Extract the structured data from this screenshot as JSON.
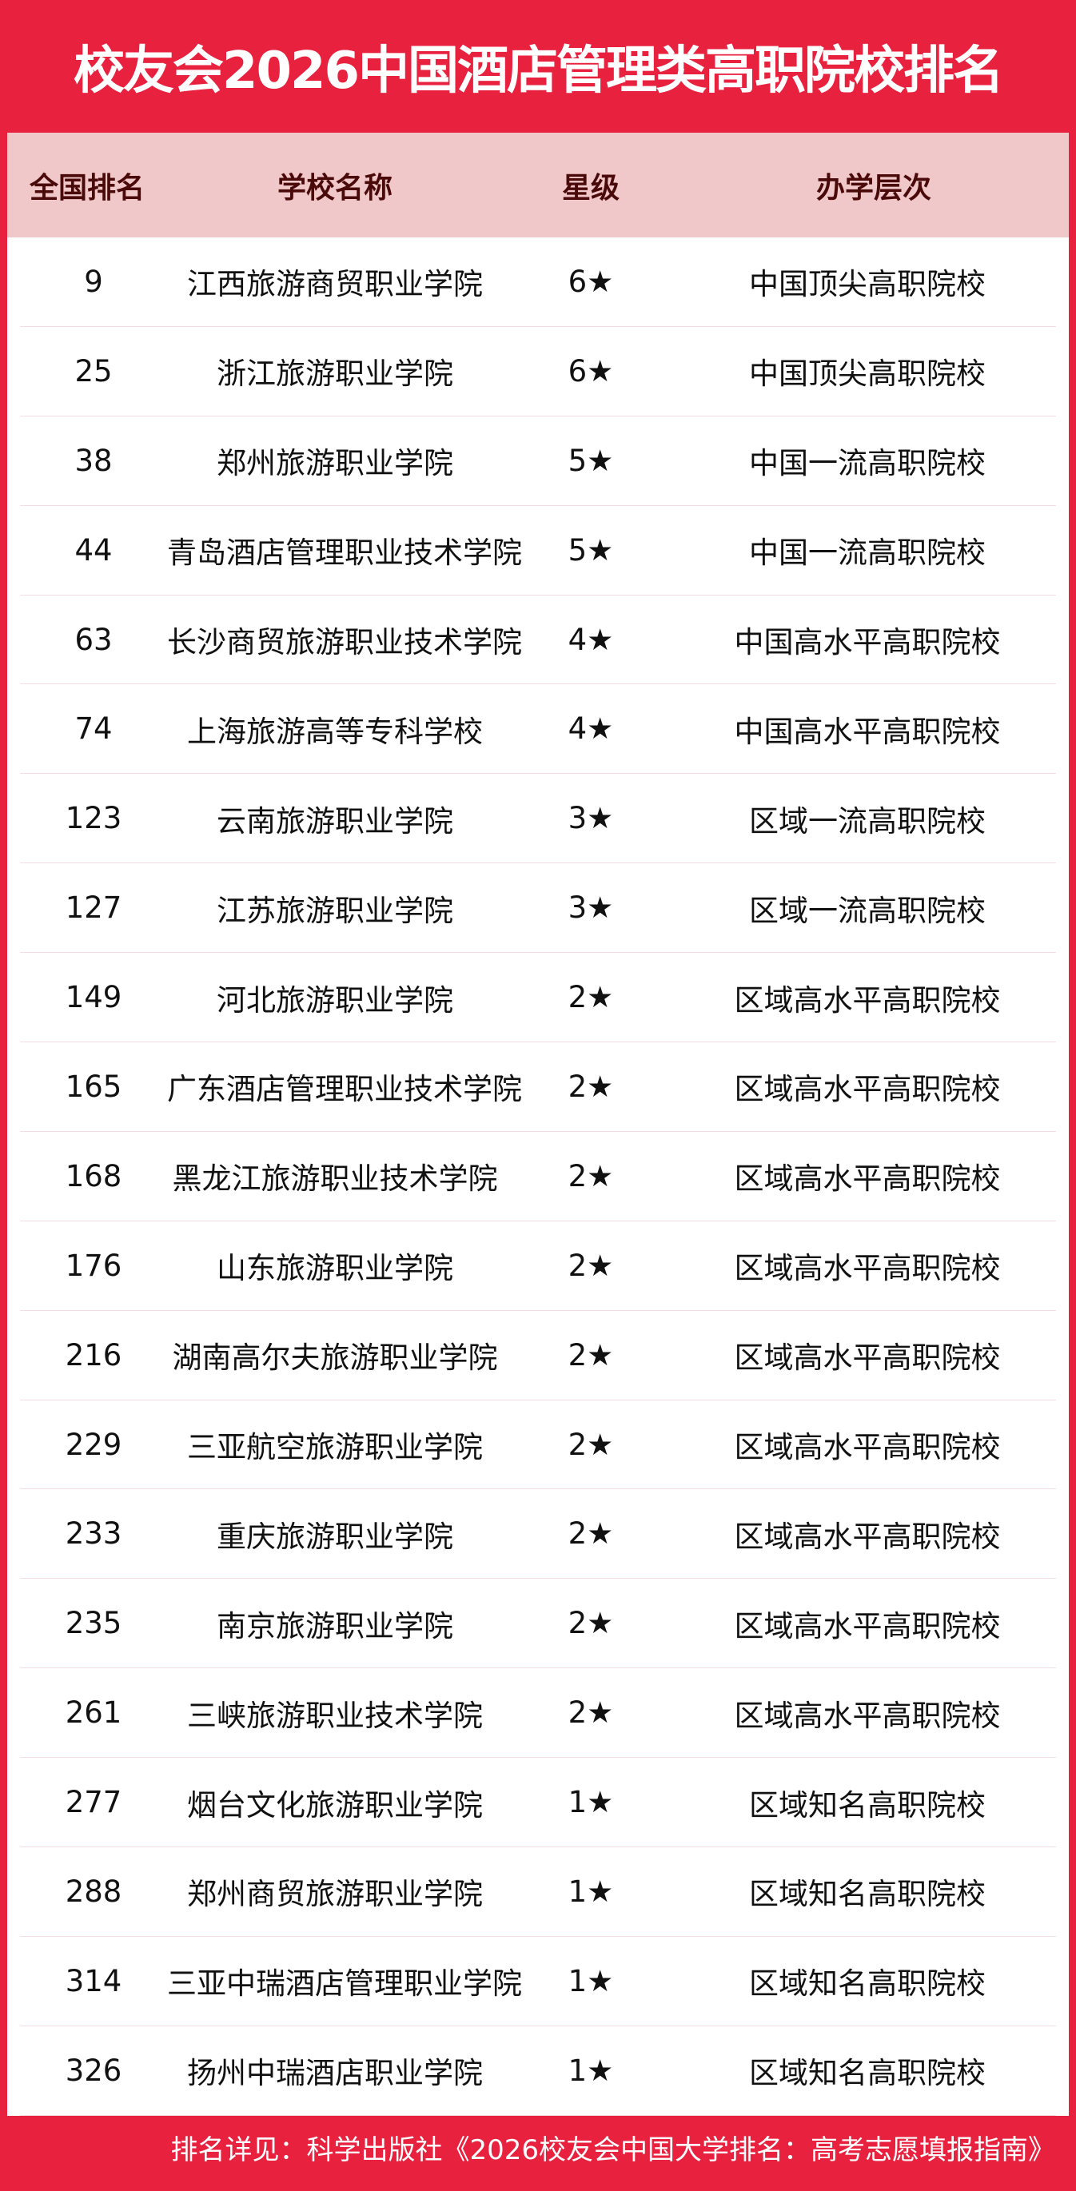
{
  "title": "校友会2026中国酒店管理类高职院校排名",
  "columns": [
    "全国排名",
    "学校名称",
    "星级",
    "办学层次"
  ],
  "rows": [
    [
      "9",
      "江西旅游商贸职业学院",
      "6★",
      "中国顶尖高职院校"
    ],
    [
      "25",
      "浙江旅游职业学院",
      "6★",
      "中国顶尖高职院校"
    ],
    [
      "38",
      "郑州旅游职业学院",
      "5★",
      "中国一流高职院校"
    ],
    [
      "44",
      "青岛酒店管理职业技术学院",
      "5★",
      "中国一流高职院校"
    ],
    [
      "63",
      "长沙商贸旅游职业技术学院",
      "4★",
      "中国高水平高职院校"
    ],
    [
      "74",
      "上海旅游高等专科学校",
      "4★",
      "中国高水平高职院校"
    ],
    [
      "123",
      "云南旅游职业学院",
      "3★",
      "区域一流高职院校"
    ],
    [
      "127",
      "江苏旅游职业学院",
      "3★",
      "区域一流高职院校"
    ],
    [
      "149",
      "河北旅游职业学院",
      "2★",
      "区域高水平高职院校"
    ],
    [
      "165",
      "广东酒店管理职业技术学院",
      "2★",
      "区域高水平高职院校"
    ],
    [
      "168",
      "黑龙江旅游职业技术学院",
      "2★",
      "区域高水平高职院校"
    ],
    [
      "176",
      "山东旅游职业学院",
      "2★",
      "区域高水平高职院校"
    ],
    [
      "216",
      "湖南高尔夫旅游职业学院",
      "2★",
      "区域高水平高职院校"
    ],
    [
      "229",
      "三亚航空旅游职业学院",
      "2★",
      "区域高水平高职院校"
    ],
    [
      "233",
      "重庆旅游职业学院",
      "2★",
      "区域高水平高职院校"
    ],
    [
      "235",
      "南京旅游职业学院",
      "2★",
      "区域高水平高职院校"
    ],
    [
      "261",
      "三峡旅游职业技术学院",
      "2★",
      "区域高水平高职院校"
    ],
    [
      "277",
      "烟台文化旅游职业学院",
      "1★",
      "区域知名高职院校"
    ],
    [
      "288",
      "郑州商贸旅游职业学院",
      "1★",
      "区域知名高职院校"
    ],
    [
      "314",
      "三亚中瑞酒店管理职业学院",
      "1★",
      "区域知名高职院校"
    ],
    [
      "326",
      "扬州中瑞酒店职业学院",
      "1★",
      "区域知名高职院校"
    ]
  ],
  "footer": "排名详见：科学出版社《2026校友会中国大学排名：高考志愿填报指南》",
  "colors": {
    "brand": "#e8213f",
    "header_bg": "#f0c8c9",
    "header_text": "#4a0a0a"
  }
}
